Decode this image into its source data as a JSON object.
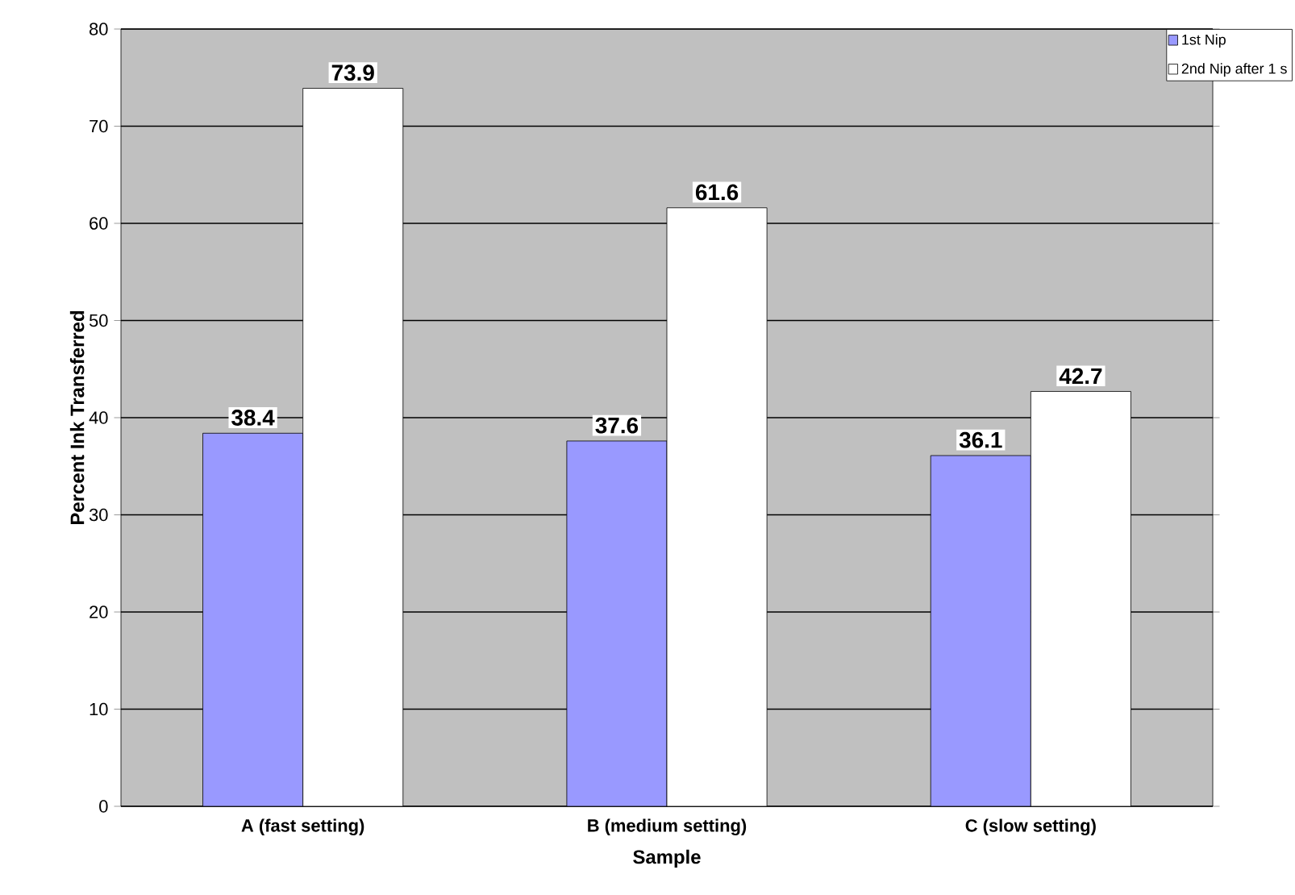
{
  "chart_data": {
    "type": "bar",
    "xlabel": "Sample",
    "ylabel": "Percent Ink Transferred",
    "categories": [
      "A (fast setting)",
      "B (medium setting)",
      "C (slow setting)"
    ],
    "series": [
      {
        "name": "1st Nip",
        "color": "#9999ff",
        "values": [
          38.4,
          37.6,
          36.1
        ]
      },
      {
        "name": "2nd Nip after 1 s",
        "color": "#ffffff",
        "values": [
          73.9,
          61.6,
          42.7
        ]
      }
    ],
    "ylim": [
      0,
      80
    ],
    "yticks": [
      0,
      10,
      20,
      30,
      40,
      50,
      60,
      70,
      80
    ],
    "grid": "y",
    "legend": "top right",
    "data_labels": true
  }
}
